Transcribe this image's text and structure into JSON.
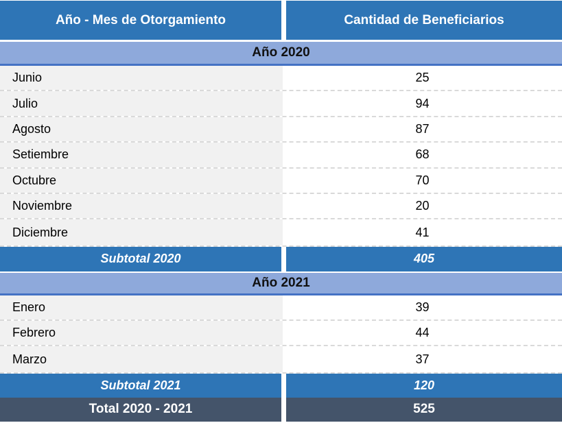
{
  "table": {
    "columns": [
      {
        "label": "Año - Mes de Otorgamiento"
      },
      {
        "label": "Cantidad de Beneficiarios"
      }
    ],
    "sections": [
      {
        "band": "Año 2020",
        "rows": [
          {
            "month": "Junio",
            "value": "25"
          },
          {
            "month": "Julio",
            "value": "94"
          },
          {
            "month": "Agosto",
            "value": "87"
          },
          {
            "month": "Setiembre",
            "value": "68"
          },
          {
            "month": "Octubre",
            "value": "70"
          },
          {
            "month": "Noviembre",
            "value": "20"
          },
          {
            "month": "Diciembre",
            "value": "41"
          }
        ],
        "subtotal": {
          "label": "Subtotal 2020",
          "value": "405"
        }
      },
      {
        "band": "Año 2021",
        "rows": [
          {
            "month": "Enero",
            "value": "39"
          },
          {
            "month": "Febrero",
            "value": "44"
          },
          {
            "month": "Marzo",
            "value": "37"
          }
        ],
        "subtotal": {
          "label": "Subtotal 2021",
          "value": "120"
        }
      }
    ],
    "total": {
      "label": "Total 2020 - 2021",
      "value": "525"
    }
  },
  "colors": {
    "header_blue": "#2E75B6",
    "band_light_blue": "#8EA9DB",
    "band_border_blue": "#4472C4",
    "subtotal_blue": "#2E75B6",
    "total_dark": "#44546A",
    "row_gray": "#F1F1F1",
    "dash_gray": "#D9D9D9"
  },
  "chart_data": {
    "type": "table",
    "title": "",
    "columns": [
      "Año - Mes de Otorgamiento",
      "Cantidad de Beneficiarios"
    ],
    "groups": [
      {
        "group": "Año 2020",
        "rows": [
          [
            "Junio",
            25
          ],
          [
            "Julio",
            94
          ],
          [
            "Agosto",
            87
          ],
          [
            "Setiembre",
            68
          ],
          [
            "Octubre",
            70
          ],
          [
            "Noviembre",
            20
          ],
          [
            "Diciembre",
            41
          ]
        ],
        "subtotal": [
          "Subtotal 2020",
          405
        ]
      },
      {
        "group": "Año 2021",
        "rows": [
          [
            "Enero",
            39
          ],
          [
            "Febrero",
            44
          ],
          [
            "Marzo",
            37
          ]
        ],
        "subtotal": [
          "Subtotal 2021",
          120
        ]
      }
    ],
    "total": [
      "Total 2020 - 2021",
      525
    ]
  }
}
